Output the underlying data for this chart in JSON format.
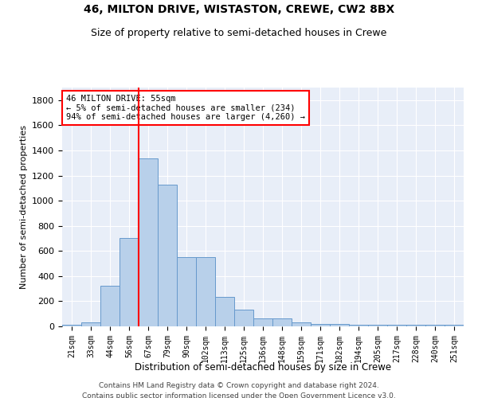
{
  "title1": "46, MILTON DRIVE, WISTASTON, CREWE, CW2 8BX",
  "title2": "Size of property relative to semi-detached houses in Crewe",
  "xlabel": "Distribution of semi-detached houses by size in Crewe",
  "ylabel": "Number of semi-detached properties",
  "categories": [
    "21sqm",
    "33sqm",
    "44sqm",
    "56sqm",
    "67sqm",
    "79sqm",
    "90sqm",
    "102sqm",
    "113sqm",
    "125sqm",
    "136sqm",
    "148sqm",
    "159sqm",
    "171sqm",
    "182sqm",
    "194sqm",
    "205sqm",
    "217sqm",
    "228sqm",
    "240sqm",
    "251sqm"
  ],
  "values": [
    15,
    30,
    325,
    700,
    1335,
    1125,
    550,
    550,
    235,
    130,
    65,
    65,
    30,
    20,
    18,
    15,
    12,
    12,
    12,
    12,
    15
  ],
  "bar_color": "#b8d0ea",
  "bar_edge_color": "#6699cc",
  "annotation_text": "46 MILTON DRIVE: 55sqm\n← 5% of semi-detached houses are smaller (234)\n94% of semi-detached houses are larger (4,260) →",
  "red_line_index": 3.5,
  "ylim": [
    0,
    1900
  ],
  "yticks": [
    0,
    200,
    400,
    600,
    800,
    1000,
    1200,
    1400,
    1600,
    1800
  ],
  "background_color": "#e8eef8",
  "grid_color": "#ffffff",
  "footer1": "Contains HM Land Registry data © Crown copyright and database right 2024.",
  "footer2": "Contains public sector information licensed under the Open Government Licence v3.0."
}
